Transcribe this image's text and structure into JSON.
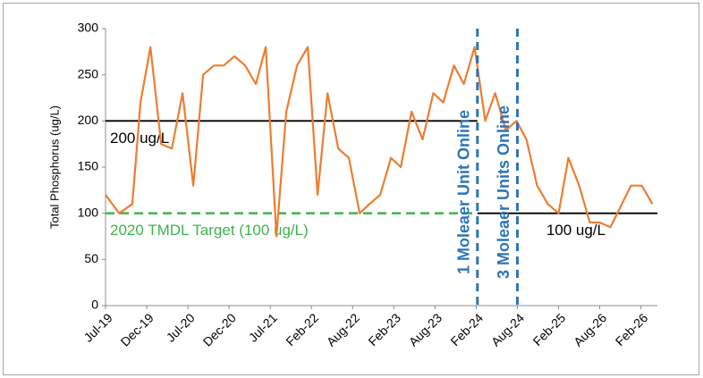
{
  "chart_data": {
    "type": "line",
    "y_label": "Total Phosphorus (ug/L)",
    "color": "#ed7d31",
    "x": [
      0,
      0.33,
      0.65,
      0.85,
      1.09,
      1.35,
      1.61,
      1.87,
      2.13,
      2.37,
      2.63,
      2.87,
      3.13,
      3.39,
      3.65,
      3.89,
      4.15,
      4.39,
      4.65,
      4.91,
      5.15,
      5.39,
      5.65,
      5.91,
      6.17,
      6.41,
      6.67,
      6.93,
      7.17,
      7.43,
      7.7,
      7.96,
      8.2,
      8.46,
      8.7,
      8.96,
      9.22,
      9.46,
      9.72,
      9.98,
      10.22,
      10.48,
      10.74,
      11.0,
      11.24,
      11.5,
      11.76,
      12.0,
      12.26,
      12.76,
      13.02,
      13.28
    ],
    "values": [
      120,
      100,
      110,
      220,
      280,
      175,
      170,
      230,
      130,
      250,
      260,
      260,
      270,
      260,
      240,
      280,
      75,
      210,
      260,
      280,
      120,
      230,
      170,
      160,
      100,
      110,
      120,
      160,
      150,
      210,
      180,
      230,
      220,
      260,
      240,
      280,
      200,
      230,
      190,
      200,
      180,
      130,
      110,
      100,
      160,
      130,
      90,
      90,
      85,
      130,
      130,
      110
    ],
    "xlim": [
      0,
      13.4
    ],
    "xticks": [
      {
        "value": 0,
        "label": "Jul-19"
      },
      {
        "value": 1,
        "label": "Dec-19"
      },
      {
        "value": 2,
        "label": "Jul-20"
      },
      {
        "value": 3,
        "label": "Dec-20"
      },
      {
        "value": 4,
        "label": "Jul-21"
      },
      {
        "value": 5,
        "label": "Feb-22"
      },
      {
        "value": 6,
        "label": "Aug-22"
      },
      {
        "value": 7,
        "label": "Feb-23"
      },
      {
        "value": 8,
        "label": "Aug-23"
      },
      {
        "value": 9,
        "label": "Feb-24"
      },
      {
        "value": 10,
        "label": "Aug-24"
      },
      {
        "value": 11,
        "label": "Feb-25"
      },
      {
        "value": 12,
        "label": "Aug-26"
      },
      {
        "value": 13,
        "label": "Feb-26"
      }
    ],
    "ylim": [
      0,
      300
    ],
    "yticks": [
      0,
      50,
      100,
      150,
      200,
      250,
      300
    ],
    "grid": false,
    "reference_lines": [
      {
        "y": 200,
        "x_range": [
          0,
          9.03
        ],
        "color": "#000000",
        "dashed": false,
        "label": "200 ug/L"
      },
      {
        "y": 100,
        "x_range": [
          0,
          9.03
        ],
        "color": "#3cb44b",
        "dashed": true,
        "label": "2020 TMDL Target (100 ug/L)"
      },
      {
        "y": 100,
        "x_range": [
          9.03,
          13.4
        ],
        "color": "#000000",
        "dashed": false,
        "label": "100 ug/L"
      }
    ],
    "vertical_lines": [
      {
        "x": 9.03,
        "color": "#2e75b6",
        "label": "1 Moleaer Unit Online"
      },
      {
        "x": 10.0,
        "color": "#2e75b6",
        "label": "3 Moleaer Units Online"
      }
    ]
  }
}
